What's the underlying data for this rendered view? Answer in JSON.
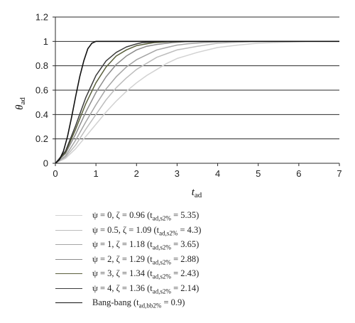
{
  "chart_data": {
    "type": "line",
    "xlabel": "t",
    "xlabel_sub": "ad",
    "ylabel": "θ",
    "ylabel_sub": "ad",
    "xlim": [
      0,
      7
    ],
    "ylim": [
      0,
      1.2
    ],
    "xticks": [
      "0",
      "1",
      "2",
      "3",
      "4",
      "5",
      "6",
      "7"
    ],
    "yticks": [
      "0",
      "0.2",
      "0.4",
      "0.6",
      "0.8",
      "1",
      "1.2"
    ],
    "grid": "horizontal",
    "legend_position": "bottom",
    "series": [
      {
        "name": "ψ = 0, ζ = 0.96 (t",
        "name_sub": "ad,s2%",
        "name_tail": " = 5.35)",
        "color": "#d2d2d2",
        "x": [
          0,
          0.25,
          0.5,
          0.75,
          1,
          1.25,
          1.5,
          1.75,
          2,
          2.25,
          2.5,
          2.75,
          3,
          3.5,
          4,
          4.5,
          5,
          5.35,
          5.75,
          6.2
        ],
        "y": [
          0,
          0.04,
          0.12,
          0.22,
          0.32,
          0.42,
          0.51,
          0.59,
          0.66,
          0.72,
          0.77,
          0.82,
          0.86,
          0.91,
          0.95,
          0.97,
          0.985,
          0.99,
          0.995,
          1
        ]
      },
      {
        "name": "ψ = 0.5, ζ = 1.09 (t",
        "name_sub": "ad,s2%",
        "name_tail": " = 4.3)",
        "color": "#bdbdbd",
        "x": [
          0,
          0.25,
          0.5,
          0.75,
          1,
          1.25,
          1.5,
          1.75,
          2,
          2.25,
          2.5,
          2.75,
          3,
          3.5,
          4,
          4.3,
          4.8,
          5.5
        ],
        "y": [
          0,
          0.05,
          0.15,
          0.28,
          0.4,
          0.52,
          0.62,
          0.7,
          0.77,
          0.82,
          0.87,
          0.9,
          0.93,
          0.96,
          0.985,
          0.99,
          0.997,
          1
        ]
      },
      {
        "name": "ψ = 1, ζ = 1.18 (t",
        "name_sub": "ad,s2%",
        "name_tail": " = 3.65)",
        "color": "#a5a5a5",
        "x": [
          0,
          0.25,
          0.5,
          0.75,
          1,
          1.25,
          1.5,
          1.75,
          2,
          2.25,
          2.5,
          2.75,
          3,
          3.25,
          3.65,
          4,
          4.5
        ],
        "y": [
          0,
          0.06,
          0.19,
          0.34,
          0.48,
          0.61,
          0.71,
          0.79,
          0.85,
          0.89,
          0.93,
          0.95,
          0.97,
          0.98,
          0.99,
          0.996,
          1
        ]
      },
      {
        "name": "ψ = 2, ζ = 1.29 (t",
        "name_sub": "ad,s2%",
        "name_tail": " = 2.88)",
        "color": "#8c8c8c",
        "x": [
          0,
          0.25,
          0.5,
          0.75,
          1,
          1.25,
          1.5,
          1.75,
          2,
          2.25,
          2.5,
          2.88,
          3.2,
          3.7
        ],
        "y": [
          0,
          0.08,
          0.24,
          0.42,
          0.58,
          0.71,
          0.81,
          0.88,
          0.93,
          0.96,
          0.975,
          0.99,
          0.997,
          1
        ]
      },
      {
        "name": "ψ = 3, ζ = 1.34 (t",
        "name_sub": "ad,s2%",
        "name_tail": " = 2.43)",
        "color": "#5a5f3c",
        "x": [
          0,
          0.25,
          0.5,
          0.75,
          1,
          1.25,
          1.5,
          1.75,
          2,
          2.25,
          2.43,
          2.8,
          3.2
        ],
        "y": [
          0,
          0.09,
          0.28,
          0.49,
          0.66,
          0.79,
          0.88,
          0.93,
          0.965,
          0.98,
          0.99,
          0.997,
          1
        ]
      },
      {
        "name": "ψ = 4, ζ = 1.36 (t",
        "name_sub": "ad,s2%",
        "name_tail": " = 2.14)",
        "color": "#3c3c3c",
        "x": [
          0,
          0.25,
          0.5,
          0.75,
          1,
          1.25,
          1.5,
          1.75,
          2,
          2.14,
          2.5,
          3
        ],
        "y": [
          0,
          0.1,
          0.31,
          0.54,
          0.72,
          0.84,
          0.91,
          0.955,
          0.98,
          0.99,
          0.997,
          1
        ]
      },
      {
        "name": "Bang-bang (t",
        "name_sub": "ad,bb2%",
        "name_tail": " = 0.9)",
        "color": "#111111",
        "x": [
          0,
          0.1,
          0.2,
          0.3,
          0.4,
          0.5,
          0.6,
          0.7,
          0.8,
          0.9,
          1.0,
          7
        ],
        "y": [
          0,
          0.03,
          0.1,
          0.22,
          0.38,
          0.55,
          0.71,
          0.84,
          0.94,
          0.985,
          1,
          1
        ]
      }
    ]
  }
}
